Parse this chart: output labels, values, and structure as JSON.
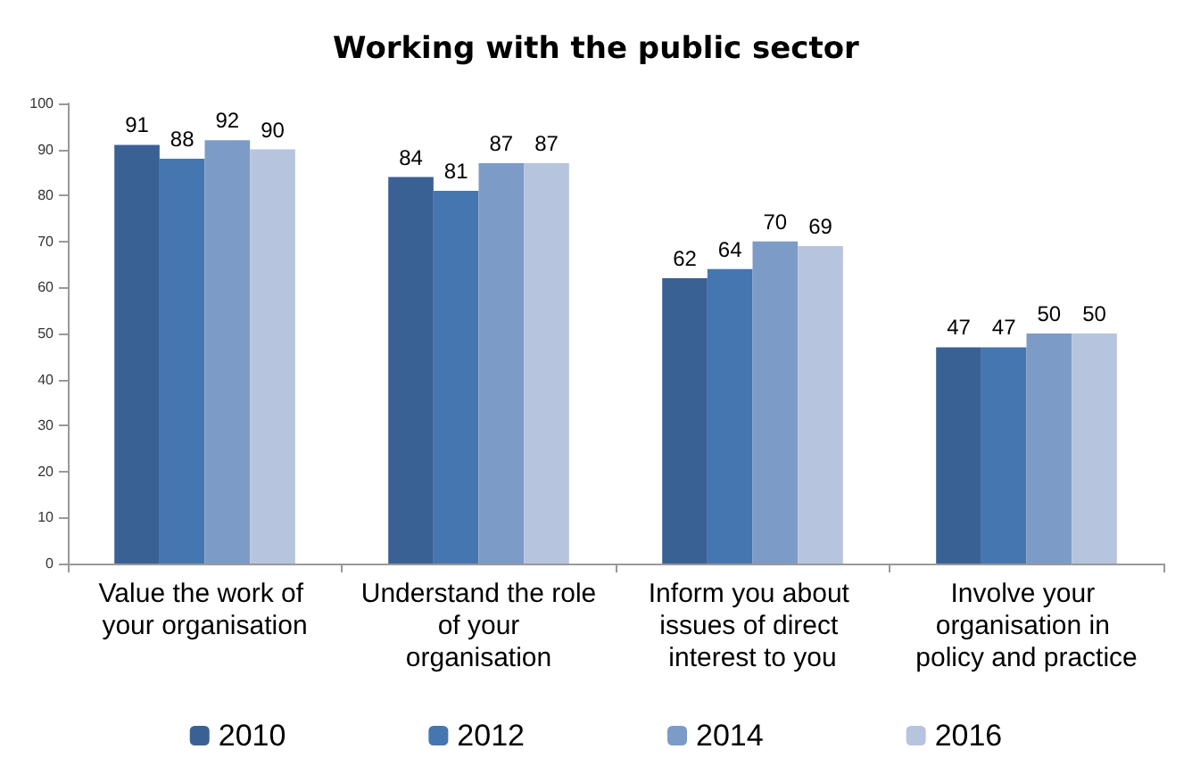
{
  "chart_data": {
    "type": "bar",
    "title": "Working with the public sector",
    "categories": [
      "Value the work of your organisation",
      "Understand the role of your organisation",
      "Inform you about issues of direct interest to you",
      "Involve your organisation in policy and practice"
    ],
    "series": [
      {
        "name": "2010",
        "color": "#3a6194",
        "values": [
          91,
          84,
          62,
          47
        ]
      },
      {
        "name": "2012",
        "color": "#4676b0",
        "values": [
          88,
          81,
          64,
          47
        ]
      },
      {
        "name": "2014",
        "color": "#7c9bc7",
        "values": [
          92,
          87,
          70,
          50
        ]
      },
      {
        "name": "2016",
        "color": "#b6c4de",
        "values": [
          90,
          87,
          69,
          50
        ]
      }
    ],
    "ylim": [
      0,
      100
    ],
    "yticks": [
      0,
      10,
      20,
      30,
      40,
      50,
      60,
      70,
      80,
      90,
      100
    ],
    "grid": false,
    "legend": "bottom",
    "data_labels": true
  }
}
